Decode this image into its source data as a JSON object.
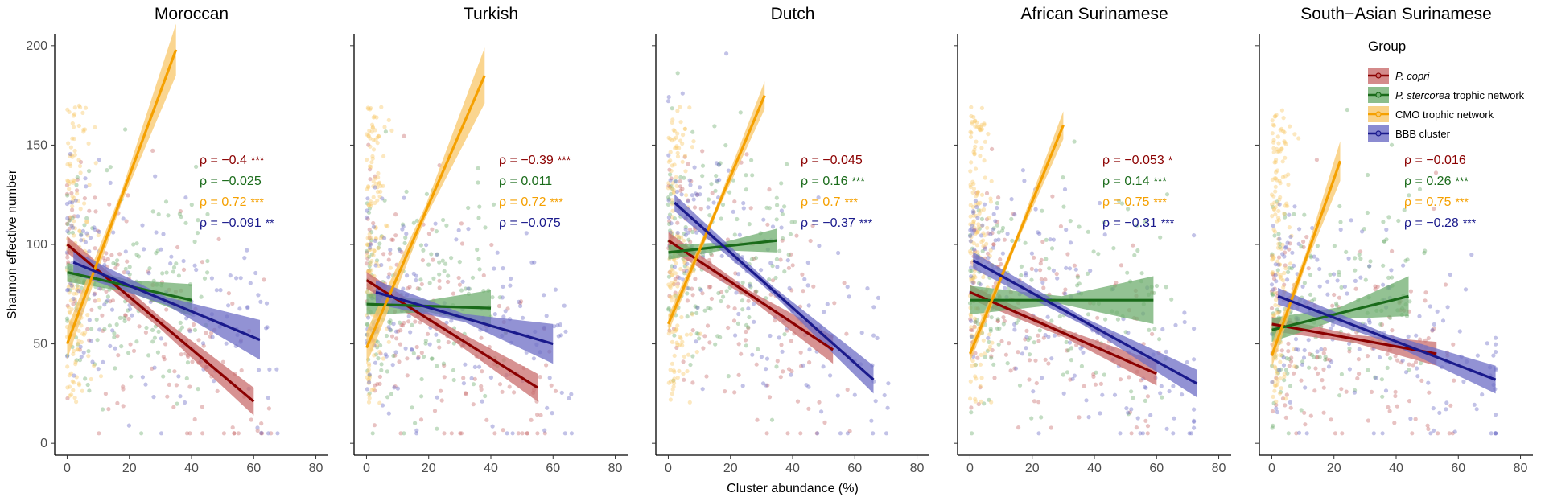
{
  "chart_data": {
    "type": "scatter",
    "xlabel": "Cluster abundance (%)",
    "ylabel": "Shannon effective number",
    "xlim": [
      -4,
      84
    ],
    "ylim": [
      -6,
      206
    ],
    "xticks": [
      0,
      20,
      40,
      60,
      80
    ],
    "yticks": [
      0,
      50,
      100,
      150,
      200
    ],
    "legend": {
      "title": "Group",
      "position": "top-right",
      "entries": [
        {
          "key": "pcopri",
          "label_italic": "P. copri",
          "label_rest": "",
          "color": "#8b0000",
          "fill": "#c96d6d"
        },
        {
          "key": "pster",
          "label_italic": "P. stercorea",
          "label_rest": " trophic network",
          "color": "#1a6b1a",
          "fill": "#6fae6f"
        },
        {
          "key": "cmo",
          "label_italic": "",
          "label_rest": "CMO trophic network",
          "color": "#f5a000",
          "fill": "#f8c76a"
        },
        {
          "key": "bbb",
          "label_italic": "",
          "label_rest": "BBB cluster",
          "color": "#1a1a8c",
          "fill": "#6e6ec6"
        }
      ]
    },
    "panels": [
      {
        "title": "Moroccan",
        "annotations": [
          {
            "series": "pcopri",
            "text": "ρ = −0.4",
            "stars": "***"
          },
          {
            "series": "pster",
            "text": "ρ = −0.025",
            "stars": ""
          },
          {
            "series": "cmo",
            "text": "ρ = 0.72",
            "stars": "***"
          },
          {
            "series": "bbb",
            "text": "ρ = −0.091",
            "stars": "**"
          }
        ],
        "fits": [
          {
            "series": "pcopri",
            "x": [
              0,
              60
            ],
            "y": [
              100,
              21
            ],
            "ci": [
              3,
              7
            ]
          },
          {
            "series": "pster",
            "x": [
              0,
              40
            ],
            "y": [
              86,
              72
            ],
            "ci": [
              3,
              8
            ]
          },
          {
            "series": "cmo",
            "x": [
              0,
              35
            ],
            "y": [
              50,
              198
            ],
            "ci": [
              3,
              13
            ]
          },
          {
            "series": "bbb",
            "x": [
              2,
              62
            ],
            "y": [
              91,
              52
            ],
            "ci": [
              2,
              10
            ]
          }
        ]
      },
      {
        "title": "Turkish",
        "annotations": [
          {
            "series": "pcopri",
            "text": "ρ = −0.39",
            "stars": "***"
          },
          {
            "series": "pster",
            "text": "ρ = 0.011",
            "stars": ""
          },
          {
            "series": "cmo",
            "text": "ρ = 0.72",
            "stars": "***"
          },
          {
            "series": "bbb",
            "text": "ρ = −0.075",
            "stars": ""
          }
        ],
        "fits": [
          {
            "series": "pcopri",
            "x": [
              0,
              55
            ],
            "y": [
              82,
              28
            ],
            "ci": [
              3,
              7
            ]
          },
          {
            "series": "pster",
            "x": [
              0,
              40
            ],
            "y": [
              70,
              68
            ],
            "ci": [
              3,
              9
            ]
          },
          {
            "series": "cmo",
            "x": [
              0,
              38
            ],
            "y": [
              48,
              185
            ],
            "ci": [
              3,
              14
            ]
          },
          {
            "series": "bbb",
            "x": [
              3,
              60
            ],
            "y": [
              76,
              50
            ],
            "ci": [
              2,
              10
            ]
          }
        ]
      },
      {
        "title": "Dutch",
        "annotations": [
          {
            "series": "pcopri",
            "text": "ρ = −0.045",
            "stars": ""
          },
          {
            "series": "pster",
            "text": "ρ = 0.16",
            "stars": "***"
          },
          {
            "series": "cmo",
            "text": "ρ = 0.7",
            "stars": "***"
          },
          {
            "series": "bbb",
            "text": "ρ = −0.37",
            "stars": "***"
          }
        ],
        "fits": [
          {
            "series": "pcopri",
            "x": [
              0,
              53
            ],
            "y": [
              102,
              47
            ],
            "ci": [
              2,
              7
            ]
          },
          {
            "series": "pster",
            "x": [
              0,
              35
            ],
            "y": [
              96,
              102
            ],
            "ci": [
              2,
              6
            ]
          },
          {
            "series": "cmo",
            "x": [
              0,
              31
            ],
            "y": [
              60,
              175
            ],
            "ci": [
              2,
              7
            ]
          },
          {
            "series": "bbb",
            "x": [
              2,
              66
            ],
            "y": [
              121,
              32
            ],
            "ci": [
              2,
              7
            ]
          }
        ]
      },
      {
        "title": "African Surinamese",
        "annotations": [
          {
            "series": "pcopri",
            "text": "ρ = −0.053",
            "stars": "*"
          },
          {
            "series": "pster",
            "text": "ρ = 0.14",
            "stars": "***"
          },
          {
            "series": "cmo",
            "text": "ρ = 0.75",
            "stars": "***"
          },
          {
            "series": "bbb",
            "text": "ρ = −0.31",
            "stars": "***"
          }
        ],
        "fits": [
          {
            "series": "pcopri",
            "x": [
              0,
              60
            ],
            "y": [
              76,
              35
            ],
            "ci": [
              2,
              6
            ]
          },
          {
            "series": "pster",
            "x": [
              0,
              59
            ],
            "y": [
              72,
              72
            ],
            "ci": [
              2,
              12
            ]
          },
          {
            "series": "cmo",
            "x": [
              0,
              30
            ],
            "y": [
              45,
              160
            ],
            "ci": [
              2,
              7
            ]
          },
          {
            "series": "bbb",
            "x": [
              1,
              73
            ],
            "y": [
              92,
              30
            ],
            "ci": [
              2,
              7
            ]
          }
        ]
      },
      {
        "title": "South−Asian Surinamese",
        "annotations": [
          {
            "series": "pcopri",
            "text": "ρ = −0.016",
            "stars": ""
          },
          {
            "series": "pster",
            "text": "ρ = 0.26",
            "stars": "***"
          },
          {
            "series": "cmo",
            "text": "ρ = 0.75",
            "stars": "***"
          },
          {
            "series": "bbb",
            "text": "ρ = −0.28",
            "stars": "***"
          }
        ],
        "fits": [
          {
            "series": "pcopri",
            "x": [
              0,
              53
            ],
            "y": [
              60,
              45
            ],
            "ci": [
              2,
              6
            ]
          },
          {
            "series": "pster",
            "x": [
              0,
              44
            ],
            "y": [
              57,
              74
            ],
            "ci": [
              3,
              10
            ]
          },
          {
            "series": "cmo",
            "x": [
              0,
              22
            ],
            "y": [
              44,
              142
            ],
            "ci": [
              3,
              10
            ]
          },
          {
            "series": "bbb",
            "x": [
              2,
              72
            ],
            "y": [
              74,
              32
            ],
            "ci": [
              2,
              7
            ]
          }
        ]
      }
    ]
  }
}
